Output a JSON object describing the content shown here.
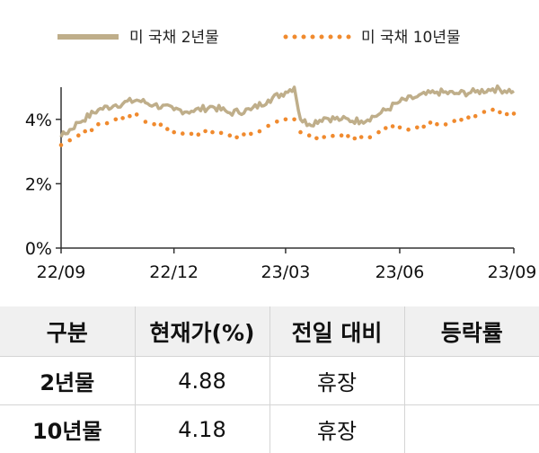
{
  "legend": {
    "series_2y": "미 국채 2년물",
    "series_10y": "미 국채 10년물"
  },
  "colors": {
    "series_2y": "#bfae8a",
    "series_10y": "#f08a2e",
    "axis": "#333333"
  },
  "chart_data": {
    "type": "line",
    "title": "",
    "xlabel": "",
    "ylabel": "",
    "x_ticks": [
      "22/09",
      "22/12",
      "23/03",
      "23/06",
      "23/09"
    ],
    "y_ticks": [
      "0%",
      "2%",
      "4%"
    ],
    "ylim": [
      0,
      5
    ],
    "grid": false,
    "legend_position": "top",
    "series": [
      {
        "name": "미 국채 2년물",
        "style": "solid",
        "x": [
          "2022-09-01",
          "2022-09-15",
          "2022-10-01",
          "2022-10-15",
          "2022-11-01",
          "2022-11-15",
          "2022-12-01",
          "2022-12-15",
          "2023-01-01",
          "2023-01-15",
          "2023-02-01",
          "2023-02-15",
          "2023-03-01",
          "2023-03-08",
          "2023-03-13",
          "2023-03-20",
          "2023-04-01",
          "2023-04-15",
          "2023-05-01",
          "2023-05-15",
          "2023-06-01",
          "2023-06-15",
          "2023-07-01",
          "2023-07-15",
          "2023-08-01",
          "2023-08-15",
          "2023-09-01"
        ],
        "values": [
          3.45,
          3.9,
          4.3,
          4.45,
          4.6,
          4.45,
          4.3,
          4.25,
          4.4,
          4.2,
          4.3,
          4.6,
          4.85,
          5.0,
          4.0,
          3.85,
          4.05,
          4.0,
          3.95,
          4.15,
          4.55,
          4.7,
          4.85,
          4.8,
          4.85,
          4.95,
          4.88
        ]
      },
      {
        "name": "미 국채 10년물",
        "style": "dotted",
        "x": [
          "2022-09-01",
          "2022-09-15",
          "2022-10-01",
          "2022-10-15",
          "2022-11-01",
          "2022-11-15",
          "2022-12-01",
          "2022-12-15",
          "2023-01-01",
          "2023-01-15",
          "2023-02-01",
          "2023-02-15",
          "2023-03-01",
          "2023-03-08",
          "2023-03-13",
          "2023-03-20",
          "2023-04-01",
          "2023-04-15",
          "2023-05-01",
          "2023-05-15",
          "2023-06-01",
          "2023-06-15",
          "2023-07-01",
          "2023-07-15",
          "2023-08-01",
          "2023-08-15",
          "2023-09-01"
        ],
        "values": [
          3.2,
          3.5,
          3.85,
          4.0,
          4.15,
          3.85,
          3.6,
          3.55,
          3.6,
          3.5,
          3.55,
          3.8,
          4.0,
          4.0,
          3.6,
          3.5,
          3.45,
          3.5,
          3.45,
          3.6,
          3.75,
          3.75,
          3.85,
          3.95,
          4.1,
          4.3,
          4.18
        ]
      }
    ]
  },
  "table": {
    "headers": [
      "구분",
      "현재가(%)",
      "전일 대비",
      "등락률"
    ],
    "rows": [
      {
        "label": "2년물",
        "price": "4.88",
        "change": "휴장",
        "rate": ""
      },
      {
        "label": "10년물",
        "price": "4.18",
        "change": "휴장",
        "rate": ""
      }
    ]
  }
}
